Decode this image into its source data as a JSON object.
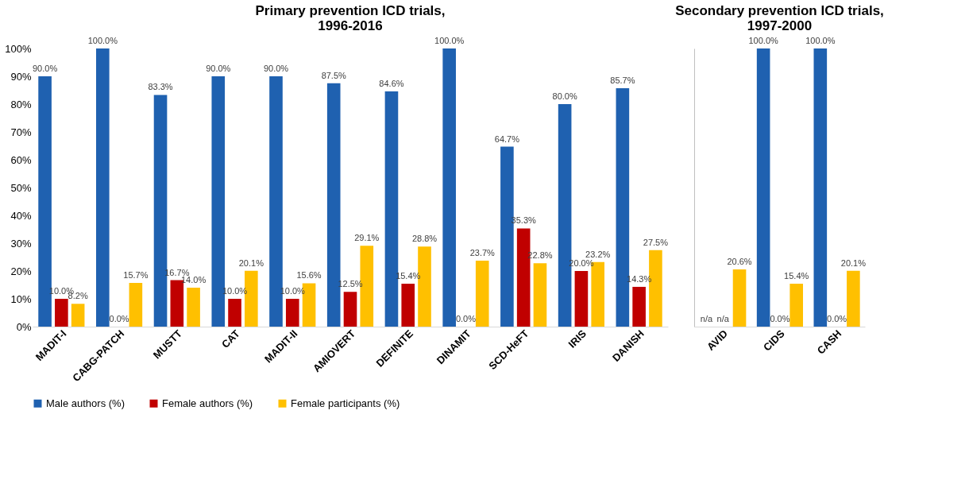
{
  "chart_data": [
    {
      "type": "bar",
      "title": "Primary prevention ICD trials, 1996-2016",
      "categories": [
        "MADIT-I",
        "CABG-PATCH",
        "MUSTT",
        "CAT",
        "MADIT-II",
        "AMIOVERT",
        "DEFINITE",
        "DINAMIT",
        "SCD-HeFT",
        "IRIS",
        "DANISH"
      ],
      "series": [
        {
          "name": "Male authors (%)",
          "color": "#1f61b0",
          "values": [
            90,
            100,
            83.3,
            90,
            90,
            87.5,
            84.6,
            100,
            64.7,
            80,
            85.7
          ],
          "value_labels": [
            "90.0%",
            "100.0%",
            "83.3%",
            "90.0%",
            "90.0%",
            "87.5%",
            "84.6%",
            "100.0%",
            "64.7%",
            "80.0%",
            "85.7%"
          ]
        },
        {
          "name": "Female authors (%)",
          "color": "#c00000",
          "values": [
            10,
            0,
            16.7,
            10,
            10,
            12.5,
            15.4,
            0,
            35.3,
            20,
            14.3
          ],
          "value_labels": [
            "10.0%",
            "0.0%",
            "16.7%",
            "10.0%",
            "10.0%",
            "12.5%",
            "15.4%",
            "0.0%",
            "35.3%",
            "20.0%",
            "14.3%"
          ]
        },
        {
          "name": "Female participants (%)",
          "color": "#ffc000",
          "values": [
            8.2,
            15.7,
            14,
            20.1,
            15.6,
            29.1,
            28.8,
            23.7,
            22.8,
            23.2,
            27.5
          ],
          "value_labels": [
            "8.2%",
            "15.7%",
            "14.0%",
            "20.1%",
            "15.6%",
            "29.1%",
            "28.8%",
            "23.7%",
            "22.8%",
            "23.2%",
            "27.5%"
          ]
        }
      ],
      "ylim": [
        0,
        100
      ],
      "yticks": [
        {
          "value": 0,
          "label": "0%"
        },
        {
          "value": 10,
          "label": "10%"
        },
        {
          "value": 20,
          "label": "20%"
        },
        {
          "value": 30,
          "label": "30%"
        },
        {
          "value": 40,
          "label": "40%"
        },
        {
          "value": 50,
          "label": "50%"
        },
        {
          "value": 60,
          "label": "60%"
        },
        {
          "value": 70,
          "label": "70%"
        },
        {
          "value": 80,
          "label": "80%"
        },
        {
          "value": 90,
          "label": "90%"
        },
        {
          "value": 100,
          "label": "100%"
        }
      ],
      "grid": false,
      "legend": "bottom"
    },
    {
      "type": "bar",
      "title": "Secondary prevention ICD trials, 1997-2000",
      "categories": [
        "AVID",
        "CIDS",
        "CASH"
      ],
      "series": [
        {
          "name": "Male authors (%)",
          "color": "#1f61b0",
          "values": [
            null,
            100,
            100
          ],
          "value_labels": [
            "n/a",
            "100.0%",
            "100.0%"
          ]
        },
        {
          "name": "Female authors (%)",
          "color": "#c00000",
          "values": [
            null,
            0,
            0
          ],
          "value_labels": [
            "n/a",
            "0.0%",
            "0.0%"
          ]
        },
        {
          "name": "Female participants (%)",
          "color": "#ffc000",
          "values": [
            20.6,
            15.4,
            20.1
          ],
          "value_labels": [
            "20.6%",
            "15.4%",
            "20.1%"
          ]
        }
      ],
      "ylim": [
        0,
        100
      ],
      "tick_labels": "x",
      "grid": false,
      "legend": "bottom"
    }
  ]
}
